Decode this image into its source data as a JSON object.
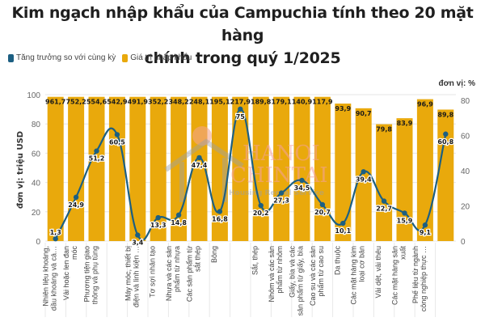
{
  "title_line1": "Kim ngạch nhập khẩu của Campuchia tính theo 20 mặt hàng",
  "title_line2": "chính trong quý 1/2025",
  "legend": [
    {
      "label": "Tăng trưởng so với cùng kỳ",
      "color": "#1c5f82"
    },
    {
      "label": "Giá trị nhập khẩu",
      "color": "#e9a90c"
    }
  ],
  "unit_right": "đơn vị: %",
  "watermark": {
    "line1": "HANOI",
    "line2": "CHINTAI",
    "line3": "Housing Rental Service"
  },
  "chart_data": {
    "type": "bar+line",
    "title": "Kim ngạch nhập khẩu của Campuchia tính theo 20 mặt hàng chính trong quý 1/2025",
    "ylabel_left": "đơn vị: triệu USD",
    "ylabel_right": "đơn vị: %",
    "ylim_left": [
      0,
      100
    ],
    "ylim_right": [
      0,
      80
    ],
    "yticks_left": [
      0,
      20,
      40,
      60,
      80,
      100
    ],
    "yticks_right": [
      0,
      20,
      40,
      60,
      80
    ],
    "grid": true,
    "legend_position": "top-left",
    "bar_color": "#e9a90c",
    "line_color": "#1c5f82",
    "categories": [
      "Nhiên liệu khoáng, dầu khoáng và cá…",
      "Vải hoặc len đan móc",
      "Phương tiện giao thông và phụ tùng",
      "",
      "Máy móc, thiết bị điện và linh kiện …",
      "Tơ sợi nhân tạo",
      "Nhựa và các sản phẩm từ nhựa",
      "Các sản phẩm từ sắt thép",
      "Bông",
      "",
      "Sắt, thép",
      "Nhôm và các sản phẩm từ nhôm",
      "Giấy, bìa và các sản phẩm từ giấy, bìa",
      "Cao su và các sản phẩm từ cao su",
      "Da thuộc",
      "Các mặt hàng kim loại cơ bản",
      "Vải dệt, vải thêu",
      "Các mặt hàng sản xuất",
      "Phế liệu từ ngành công nghiệp thực …",
      ""
    ],
    "series": [
      {
        "name": "Giá trị nhập khẩu",
        "type": "bar",
        "axis": "left",
        "values": [
          961.7,
          752.2,
          554.6,
          542.9,
          491.9,
          352.2,
          348.2,
          248.1,
          195.1,
          217.9,
          189.8,
          179.1,
          140.9,
          117.9,
          93.9,
          90.7,
          79.8,
          83.9,
          96.9,
          89.8
        ],
        "labels": [
          "961,7",
          "752,2",
          "554,6",
          "542,9",
          "491,9",
          "352,2",
          "348,2",
          "248,1",
          "195,1",
          "217,9",
          "189,8",
          "179,1",
          "140,9",
          "117,9",
          "93,9",
          "90,7",
          "79,8",
          "83,9",
          "96,9",
          "89,8"
        ]
      },
      {
        "name": "Tăng trưởng so với cùng kỳ",
        "type": "line",
        "axis": "right",
        "values": [
          1.3,
          24.9,
          51.2,
          60.5,
          3.4,
          13.3,
          14.8,
          47.4,
          16.8,
          75,
          20.2,
          27.3,
          34.5,
          20.7,
          10.1,
          39.4,
          22.7,
          15.9,
          9.1,
          60.8
        ],
        "labels": [
          "1,3",
          "24,9",
          "51,2",
          "60,5",
          "3,4",
          "13,3",
          "14,8",
          "47,4",
          "16,8",
          "75",
          "20,2",
          "27,3",
          "34,5",
          "20,7",
          "10,1",
          "39,4",
          "22,7",
          "15,9",
          "9,1",
          "60,8"
        ]
      }
    ]
  }
}
